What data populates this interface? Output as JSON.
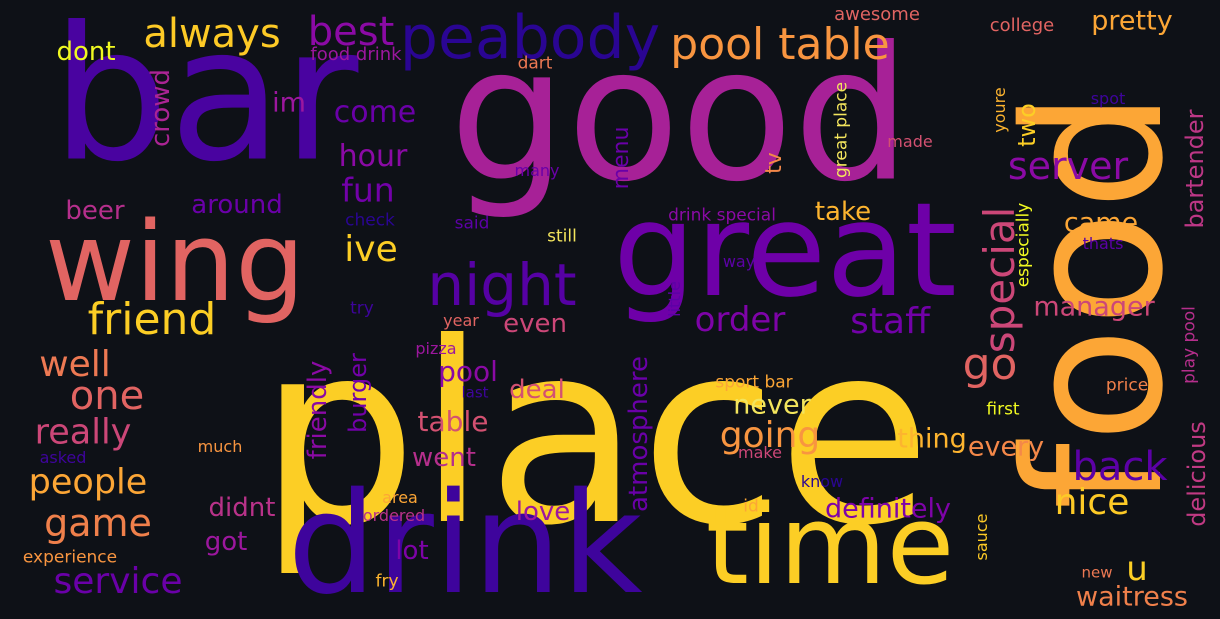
{
  "words": [
    {
      "text": "place",
      "color": "#fcce25"
    },
    {
      "text": "good",
      "color": "#a72197"
    },
    {
      "text": "bar",
      "color": "#4903a0"
    },
    {
      "text": "food",
      "color": "#fca636"
    },
    {
      "text": "drink",
      "color": "#3e049c"
    },
    {
      "text": "great",
      "color": "#6e00a8"
    },
    {
      "text": "wing",
      "color": "#e16462"
    },
    {
      "text": "time",
      "color": "#fcce25"
    },
    {
      "text": "night",
      "color": "#5601a4"
    },
    {
      "text": "friend",
      "color": "#fcce25"
    },
    {
      "text": "peabody",
      "color": "#2a0593"
    },
    {
      "text": "pool table",
      "color": "#f89540"
    },
    {
      "text": "best",
      "color": "#8b0aa5"
    },
    {
      "text": "always",
      "color": "#fdca26"
    },
    {
      "text": "special",
      "color": "#cc4778"
    },
    {
      "text": "server",
      "color": "#8b0aa5"
    },
    {
      "text": "go",
      "color": "#e16462"
    },
    {
      "text": "staff",
      "color": "#7201a8"
    },
    {
      "text": "order",
      "color": "#7e03a8"
    },
    {
      "text": "one",
      "color": "#e16462"
    },
    {
      "text": "well",
      "color": "#ed7953"
    },
    {
      "text": "really",
      "color": "#cc4778"
    },
    {
      "text": "people",
      "color": "#fca636"
    },
    {
      "text": "game",
      "color": "#f0804b"
    },
    {
      "text": "service",
      "color": "#6a00a8"
    },
    {
      "text": "back",
      "color": "#5c01a6"
    },
    {
      "text": "going",
      "color": "#f89540"
    },
    {
      "text": "nice",
      "color": "#fdca26"
    },
    {
      "text": "u",
      "color": "#fcce25"
    },
    {
      "text": "ive",
      "color": "#fcce25"
    },
    {
      "text": "fun",
      "color": "#7201a8"
    },
    {
      "text": "hour",
      "color": "#8b0aa5"
    },
    {
      "text": "come",
      "color": "#6a00a8"
    },
    {
      "text": "im",
      "color": "#9c179e"
    },
    {
      "text": "dont",
      "color": "#f0f921"
    },
    {
      "text": "crowd",
      "color": "#ab2494"
    },
    {
      "text": "beer",
      "color": "#b52f8c"
    },
    {
      "text": "around",
      "color": "#6a00a8"
    },
    {
      "text": "take",
      "color": "#fdb42f"
    },
    {
      "text": "even",
      "color": "#cc4778"
    },
    {
      "text": "pool",
      "color": "#8b0aa5"
    },
    {
      "text": "deal",
      "color": "#d35171"
    },
    {
      "text": "table",
      "color": "#d35171"
    },
    {
      "text": "went",
      "color": "#b52f8c"
    },
    {
      "text": "never",
      "color": "#f3e55d"
    },
    {
      "text": "thing",
      "color": "#fdb42f"
    },
    {
      "text": "every",
      "color": "#f48849"
    },
    {
      "text": "manager",
      "color": "#cc4778"
    },
    {
      "text": "came",
      "color": "#fca636"
    },
    {
      "text": "definitely",
      "color": "#7e03a8"
    },
    {
      "text": "love",
      "color": "#9c179e"
    },
    {
      "text": "didnt",
      "color": "#b83289"
    },
    {
      "text": "got",
      "color": "#9c179e"
    },
    {
      "text": "lot",
      "color": "#7e03a8"
    },
    {
      "text": "waitress",
      "color": "#f0804b"
    },
    {
      "text": "pretty",
      "color": "#fca636"
    },
    {
      "text": "bartender",
      "color": "#bd3786"
    },
    {
      "text": "two",
      "color": "#fcce25"
    },
    {
      "text": "delicious",
      "color": "#c03a83"
    },
    {
      "text": "burger",
      "color": "#7201a8"
    },
    {
      "text": "friendly",
      "color": "#8b0aa5"
    },
    {
      "text": "atmosphere",
      "color": "#6a00a8"
    },
    {
      "text": "menu",
      "color": "#6a00a8"
    },
    {
      "text": "tv",
      "color": "#f48849"
    },
    {
      "text": "awesome",
      "color": "#e16462"
    },
    {
      "text": "college",
      "color": "#e16462"
    },
    {
      "text": "food drink",
      "color": "#9c179e"
    },
    {
      "text": "dart",
      "color": "#ed7953"
    },
    {
      "text": "great place",
      "color": "#f3e55d"
    },
    {
      "text": "youre",
      "color": "#fdb42f"
    },
    {
      "text": "spot",
      "color": "#3e049c"
    },
    {
      "text": "made",
      "color": "#d35171"
    },
    {
      "text": "many",
      "color": "#6a00a8"
    },
    {
      "text": "check",
      "color": "#2a0593"
    },
    {
      "text": "said",
      "color": "#5c01a6"
    },
    {
      "text": "still",
      "color": "#f3e55d"
    },
    {
      "text": "drink special",
      "color": "#8b0aa5"
    },
    {
      "text": "especially",
      "color": "#f0f921"
    },
    {
      "text": "thats",
      "color": "#5c01a6"
    },
    {
      "text": "way",
      "color": "#5c01a6"
    },
    {
      "text": "little",
      "color": "#5c01a6"
    },
    {
      "text": "try",
      "color": "#3e049c"
    },
    {
      "text": "year",
      "color": "#e16462"
    },
    {
      "text": "pizza",
      "color": "#9c179e"
    },
    {
      "text": "last",
      "color": "#3e049c"
    },
    {
      "text": "play pool",
      "color": "#b52f8c"
    },
    {
      "text": "sport bar",
      "color": "#fca636"
    },
    {
      "text": "price",
      "color": "#f0804b"
    },
    {
      "text": "first",
      "color": "#f0f921"
    },
    {
      "text": "much",
      "color": "#f89540"
    },
    {
      "text": "asked",
      "color": "#3e049c"
    },
    {
      "text": "make",
      "color": "#cc4778"
    },
    {
      "text": "know",
      "color": "#2a0593"
    },
    {
      "text": "area",
      "color": "#fca636"
    },
    {
      "text": "ordered",
      "color": "#b83289"
    },
    {
      "text": "id",
      "color": "#fca636"
    },
    {
      "text": "sauce",
      "color": "#fdca26"
    },
    {
      "text": "experience",
      "color": "#f89540"
    },
    {
      "text": "fry",
      "color": "#fdb42f"
    },
    {
      "text": "new",
      "color": "#ed7953"
    }
  ]
}
